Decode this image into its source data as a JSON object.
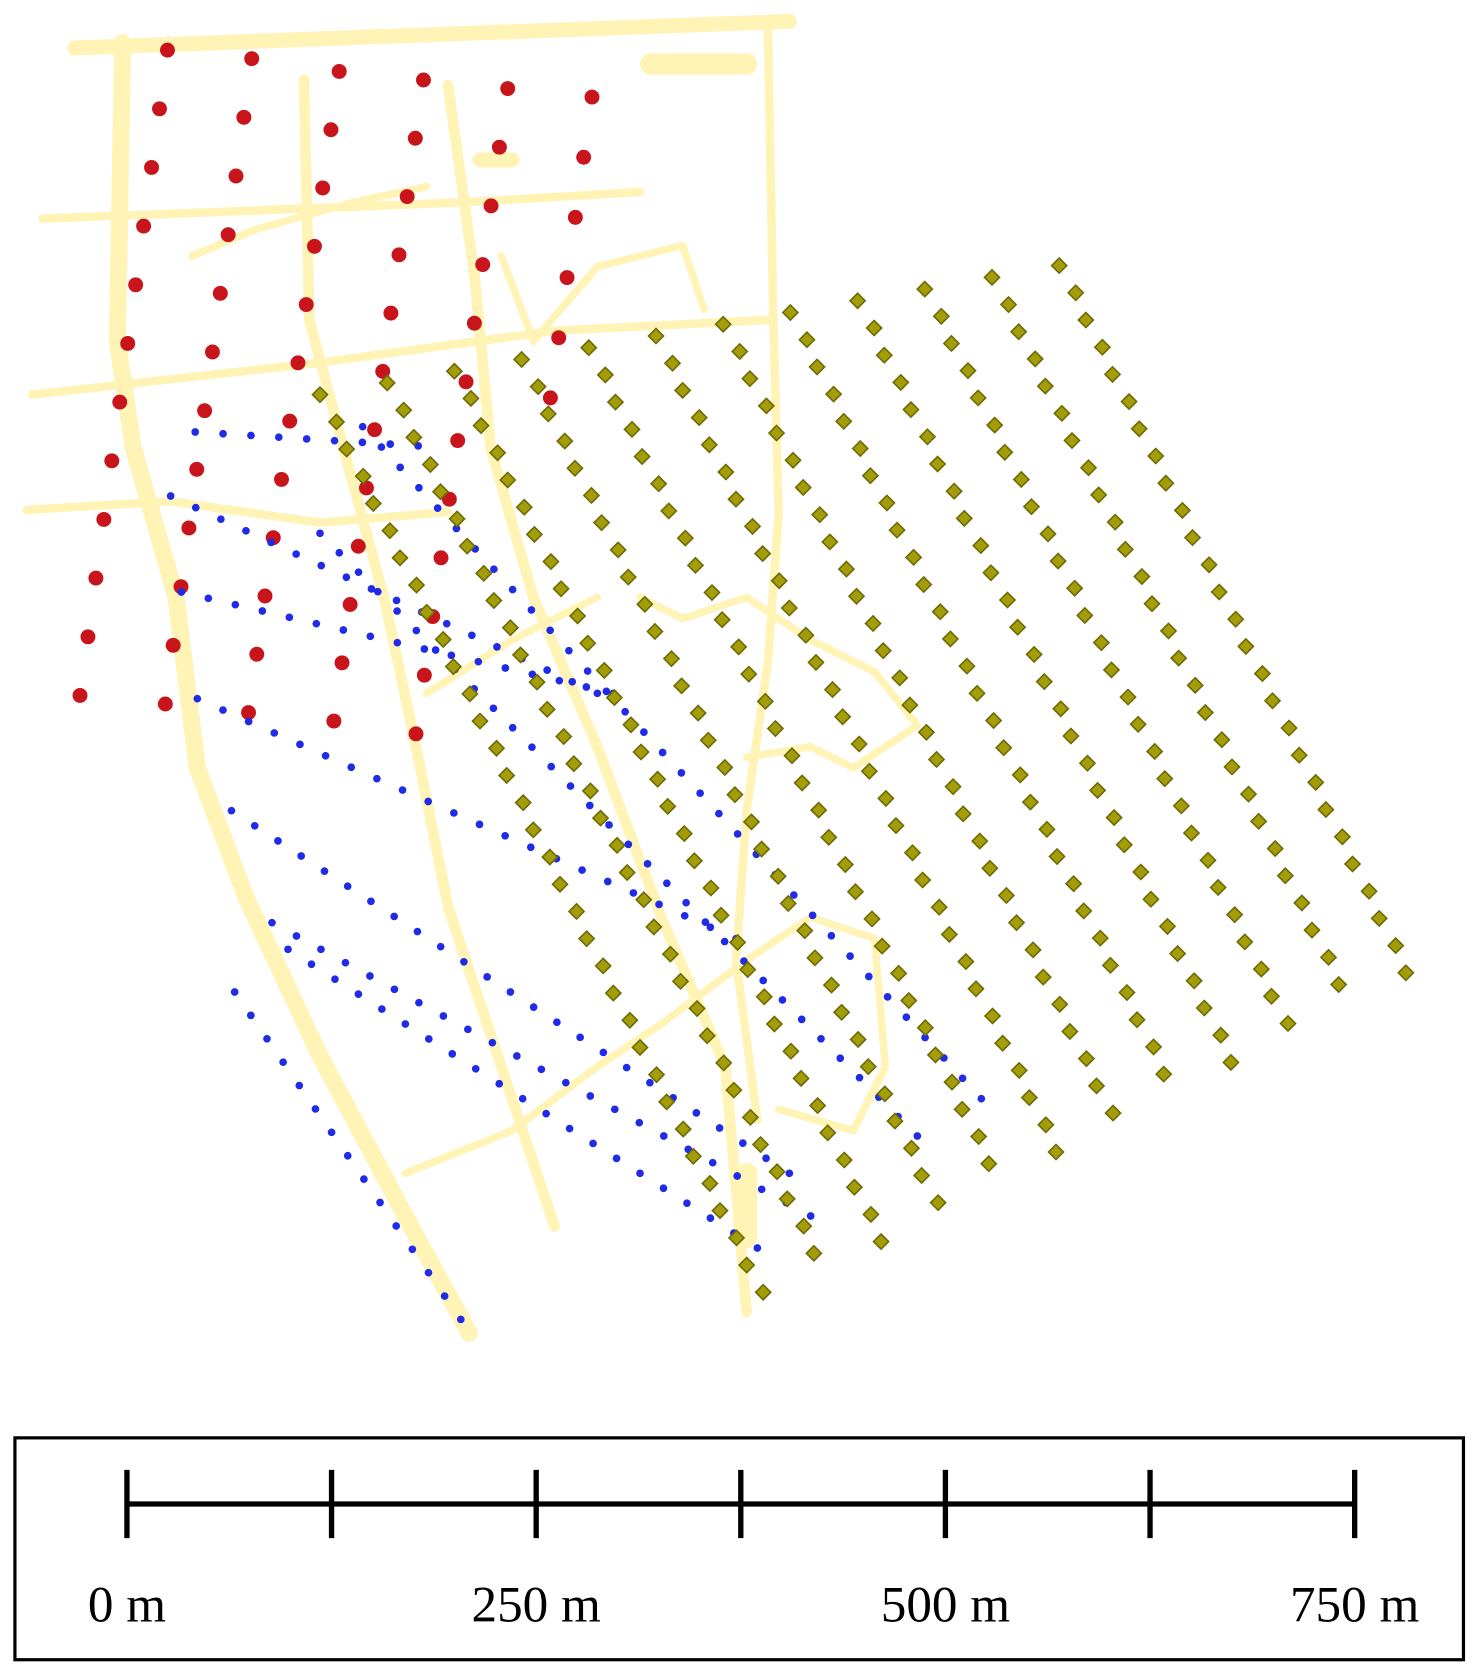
{
  "scale_bar": {
    "ticks": [
      0,
      125,
      250,
      375,
      500,
      625,
      750
    ],
    "labels": [
      {
        "value": 0,
        "label": "0 m"
      },
      {
        "value": 250,
        "label": "250 m"
      },
      {
        "value": 500,
        "label": "500 m"
      },
      {
        "value": 750,
        "label": "750 m"
      }
    ]
  }
}
